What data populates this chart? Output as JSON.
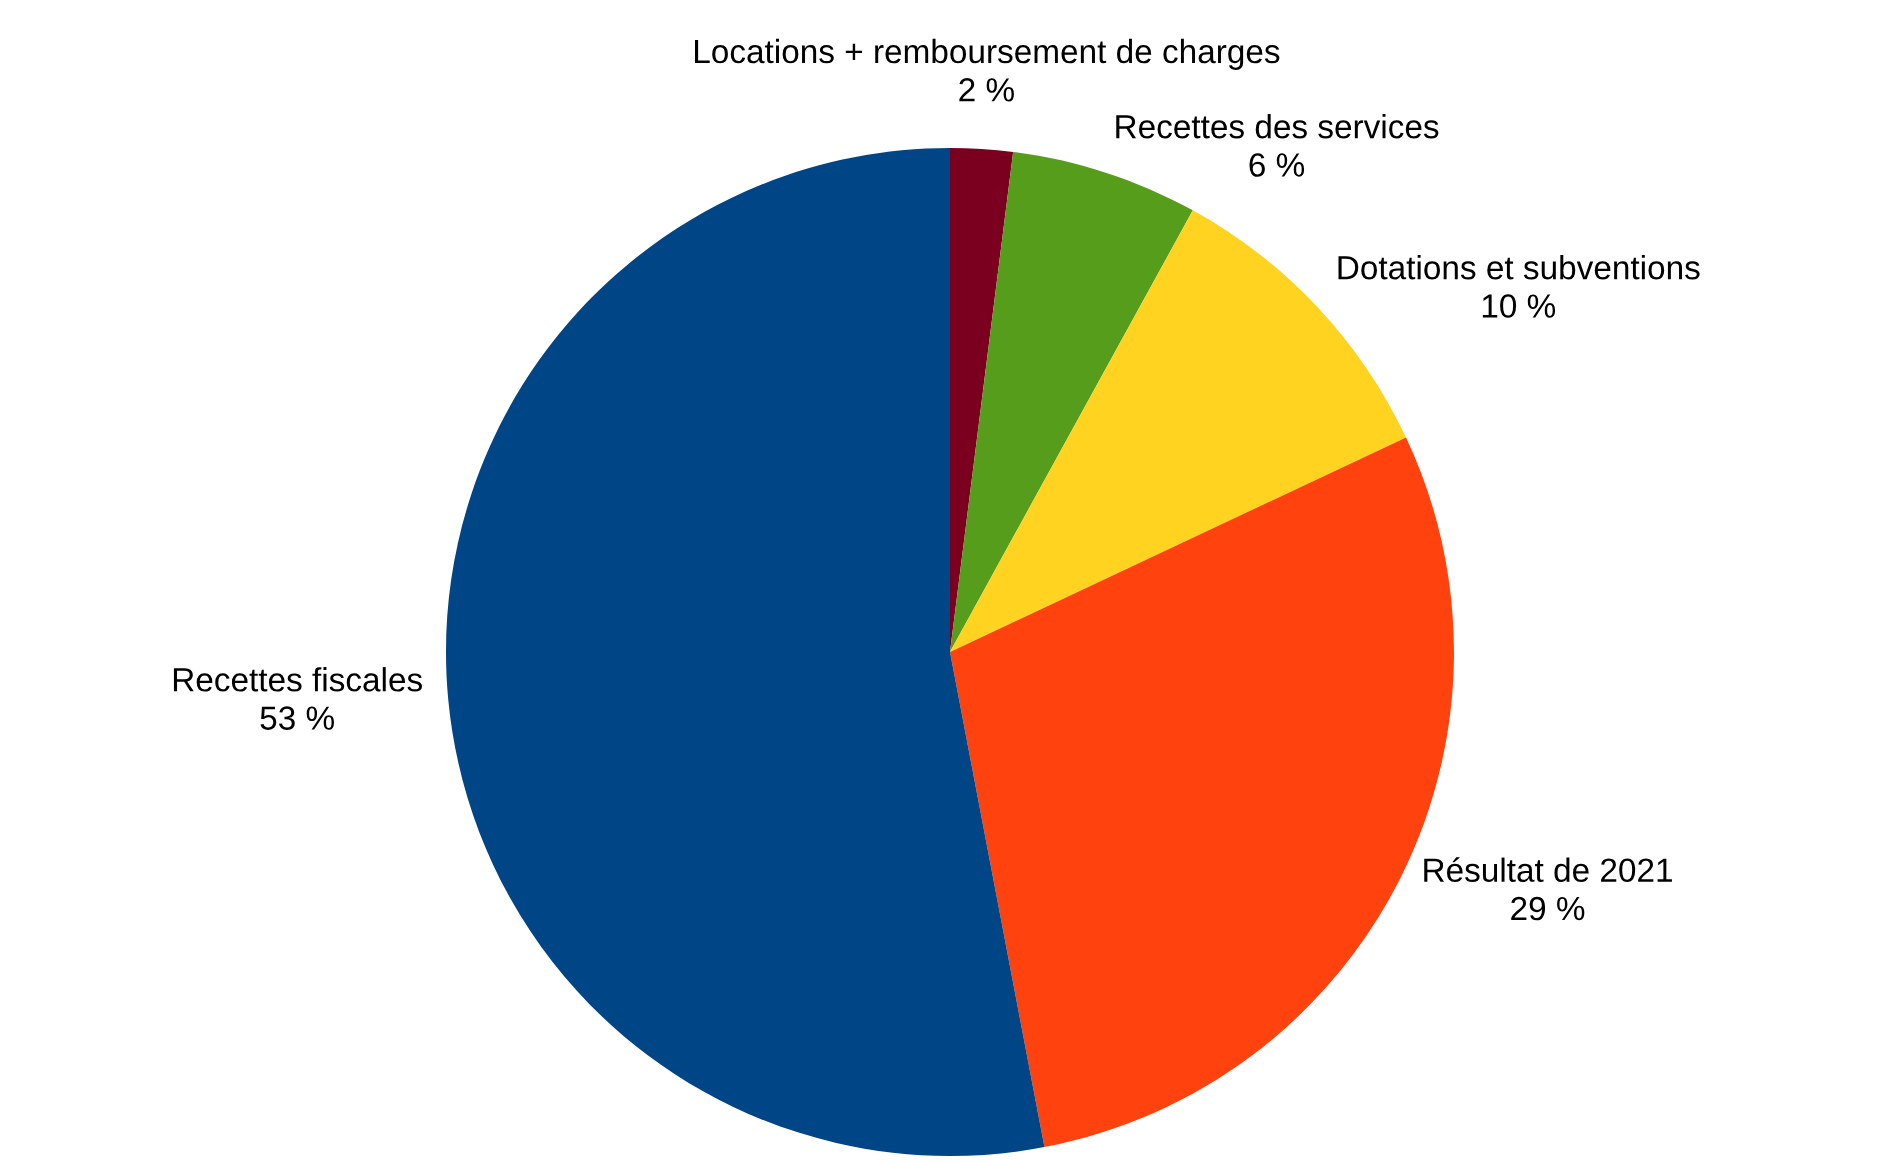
{
  "chart_data": {
    "type": "pie",
    "categories": [
      "Locations + remboursement de charges",
      "Recettes des services",
      "Dotations et subventions",
      "Résultat de 2021",
      "Recettes fiscales"
    ],
    "values": [
      2,
      6,
      10,
      29,
      53
    ],
    "value_labels": [
      "2 %",
      "6 %",
      "10 %",
      "29 %",
      "53 %"
    ],
    "colors": [
      "#7b0020",
      "#579d1c",
      "#ffd320",
      "#ff420e",
      "#004586"
    ],
    "legend": false
  }
}
